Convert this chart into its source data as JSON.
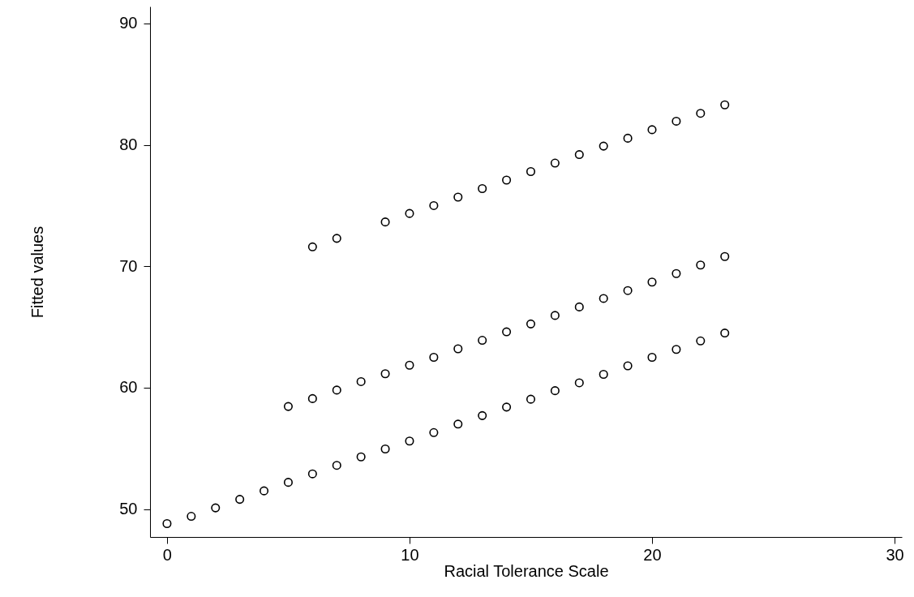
{
  "chart_data": {
    "type": "scatter",
    "xlabel": "Racial Tolerance Scale",
    "ylabel": "Fitted values",
    "xlim": [
      -0.7,
      30.3
    ],
    "ylim": [
      47.7,
      91.4
    ],
    "xticks": [
      0,
      10,
      20,
      30
    ],
    "yticks": [
      50,
      60,
      70,
      80,
      90
    ],
    "grid": false,
    "marker": "circle",
    "series": [
      {
        "color": "#000000",
        "x": [
          0,
          1,
          2,
          3,
          4,
          5,
          6,
          7,
          8,
          9,
          10,
          11,
          12,
          13,
          14,
          15,
          16,
          17,
          18,
          19,
          20,
          21,
          22,
          23
        ],
        "values": [
          48.8,
          49.4,
          50.1,
          50.8,
          51.5,
          52.2,
          52.9,
          53.6,
          54.3,
          54.95,
          55.6,
          56.3,
          57.0,
          57.7,
          58.4,
          59.05,
          59.75,
          60.4,
          61.1,
          61.8,
          62.5,
          63.15,
          63.85,
          64.5
        ]
      },
      {
        "color": "#000000",
        "x": [
          5,
          6,
          7,
          8,
          9,
          10,
          11,
          12,
          13,
          14,
          15,
          16,
          17,
          18,
          19,
          20,
          21,
          22,
          23
        ],
        "values": [
          58.45,
          59.1,
          59.8,
          60.5,
          61.15,
          61.85,
          62.5,
          63.2,
          63.9,
          64.6,
          65.25,
          65.95,
          66.65,
          67.35,
          68.0,
          68.7,
          69.4,
          70.1,
          70.8
        ]
      },
      {
        "color": "#000000",
        "x": [
          6,
          7,
          9,
          10,
          11,
          12,
          13,
          14,
          15,
          16,
          17,
          18,
          19,
          20,
          21,
          22,
          23
        ],
        "values": [
          71.6,
          72.3,
          73.65,
          74.35,
          75.0,
          75.7,
          76.4,
          77.1,
          77.8,
          78.5,
          79.2,
          79.9,
          80.55,
          81.25,
          81.95,
          82.6,
          83.3
        ]
      }
    ]
  }
}
